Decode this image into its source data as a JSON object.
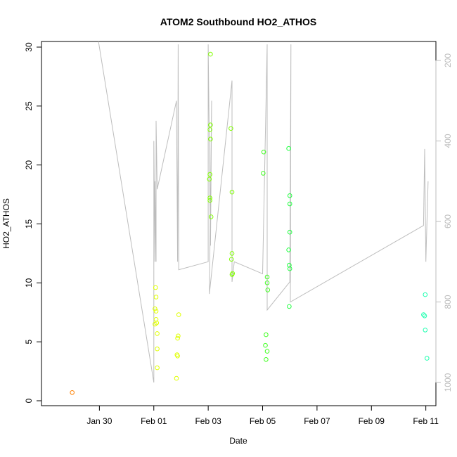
{
  "chart_data": {
    "type": "scatter",
    "title": "ATOM2 Southbound HO2_ATHOS",
    "xlabel": "Date",
    "ylabel": "HO2_ATHOS",
    "xlim": [
      "2016-01-28T00:00",
      "2016-02-11T12:00"
    ],
    "ylim": [
      0,
      30
    ],
    "y2lim": [
      1050,
      150
    ],
    "x_ticks": [
      {
        "label": "Jan 30",
        "value": "2016-01-30T00:00"
      },
      {
        "label": "Feb 01",
        "value": "2016-02-01T00:00"
      },
      {
        "label": "Feb 03",
        "value": "2016-02-03T00:00"
      },
      {
        "label": "Feb 05",
        "value": "2016-02-05T00:00"
      },
      {
        "label": "Feb 07",
        "value": "2016-02-07T00:00"
      },
      {
        "label": "Feb 09",
        "value": "2016-02-09T00:00"
      },
      {
        "label": "Feb 11",
        "value": "2016-02-11T00:00"
      }
    ],
    "y_ticks": [
      "0",
      "5",
      "10",
      "15",
      "20",
      "25",
      "30"
    ],
    "y2_ticks": [
      "200",
      "400",
      "600",
      "800",
      "1000"
    ],
    "grid": false,
    "series": [
      {
        "color": "#ff8000",
        "points": [
          [
            "2016-01-29T00:00",
            0.7
          ]
        ]
      },
      {
        "color": "#e0ff00",
        "points": [
          [
            "2016-02-01T01:00",
            7.8
          ],
          [
            "2016-02-01T01:00",
            6.5
          ],
          [
            "2016-02-01T01:30",
            9.6
          ],
          [
            "2016-02-01T02:00",
            8.8
          ],
          [
            "2016-02-01T02:00",
            7.6
          ],
          [
            "2016-02-01T02:00",
            6.9
          ],
          [
            "2016-02-01T02:30",
            6.6
          ],
          [
            "2016-02-01T03:00",
            5.7
          ],
          [
            "2016-02-01T03:00",
            4.4
          ],
          [
            "2016-02-01T03:00",
            2.8
          ],
          [
            "2016-02-01T20:00",
            1.9
          ],
          [
            "2016-02-01T20:30",
            3.9
          ],
          [
            "2016-02-01T21:00",
            3.8
          ],
          [
            "2016-02-01T21:00",
            5.3
          ],
          [
            "2016-02-01T21:30",
            5.5
          ],
          [
            "2016-02-01T22:00",
            7.3
          ]
        ]
      },
      {
        "color": "#80ff00",
        "points": [
          [
            "2016-02-03T02:00",
            29.4
          ],
          [
            "2016-02-03T02:00",
            23.4
          ],
          [
            "2016-02-03T01:30",
            23.0
          ],
          [
            "2016-02-03T02:00",
            22.2
          ],
          [
            "2016-02-03T01:30",
            19.2
          ],
          [
            "2016-02-03T01:00",
            18.8
          ],
          [
            "2016-02-03T01:30",
            17.2
          ],
          [
            "2016-02-03T01:30",
            17.0
          ],
          [
            "2016-02-03T02:30",
            15.6
          ],
          [
            "2016-02-03T20:00",
            23.1
          ],
          [
            "2016-02-03T21:00",
            17.7
          ],
          [
            "2016-02-03T21:00",
            12.5
          ],
          [
            "2016-02-03T20:30",
            12.0
          ],
          [
            "2016-02-03T21:00",
            10.7
          ],
          [
            "2016-02-03T21:30",
            10.8
          ]
        ]
      },
      {
        "color": "#40ff20",
        "points": [
          [
            "2016-02-05T01:00",
            21.1
          ],
          [
            "2016-02-05T00:30",
            19.3
          ],
          [
            "2016-02-05T04:00",
            10.5
          ],
          [
            "2016-02-05T04:00",
            10.0
          ],
          [
            "2016-02-05T04:30",
            9.4
          ],
          [
            "2016-02-05T03:00",
            5.6
          ],
          [
            "2016-02-05T02:30",
            4.7
          ],
          [
            "2016-02-05T04:00",
            4.2
          ],
          [
            "2016-02-05T03:00",
            3.5
          ]
        ]
      },
      {
        "color": "#20ff40",
        "points": [
          [
            "2016-02-05T23:00",
            21.4
          ],
          [
            "2016-02-06T00:00",
            17.4
          ],
          [
            "2016-02-06T00:00",
            16.7
          ],
          [
            "2016-02-06T00:00",
            14.3
          ],
          [
            "2016-02-05T23:00",
            12.8
          ],
          [
            "2016-02-05T23:30",
            11.5
          ],
          [
            "2016-02-06T00:00",
            11.2
          ],
          [
            "2016-02-05T23:30",
            8.0
          ]
        ]
      },
      {
        "color": "#20ffb0",
        "points": [
          [
            "2016-02-10T23:30",
            9.0
          ],
          [
            "2016-02-10T22:00",
            7.3
          ],
          [
            "2016-02-10T23:00",
            7.2
          ],
          [
            "2016-02-10T23:30",
            6.0
          ],
          [
            "2016-02-11T01:00",
            3.6
          ]
        ]
      }
    ],
    "pressure_line": {
      "color": "#bdbdbd",
      "axis": "right",
      "points": [
        [
          "2016-01-29T23:00",
          150
        ],
        [
          "2016-02-01T00:00",
          1000
        ],
        [
          "2016-02-01T00:00",
          400
        ],
        [
          "2016-02-01T01:00",
          700
        ],
        [
          "2016-02-01T01:00",
          500
        ],
        [
          "2016-02-01T02:00",
          700
        ],
        [
          "2016-02-01T02:00",
          350
        ],
        [
          "2016-02-01T03:00",
          520
        ],
        [
          "2016-02-01T20:00",
          300
        ],
        [
          "2016-02-01T21:00",
          700
        ],
        [
          "2016-02-01T21:30",
          160
        ],
        [
          "2016-02-01T22:00",
          720
        ],
        [
          "2016-02-03T00:00",
          700
        ],
        [
          "2016-02-03T00:00",
          160
        ],
        [
          "2016-02-03T02:00",
          660
        ],
        [
          "2016-02-03T03:00",
          300
        ],
        [
          "2016-02-03T01:00",
          780
        ],
        [
          "2016-02-03T21:00",
          250
        ],
        [
          "2016-02-03T21:00",
          750
        ],
        [
          "2016-02-03T23:00",
          700
        ],
        [
          "2016-02-05T00:00",
          730
        ],
        [
          "2016-02-05T04:00",
          160
        ],
        [
          "2016-02-05T04:00",
          820
        ],
        [
          "2016-02-06T00:00",
          750
        ],
        [
          "2016-02-06T01:00",
          160
        ],
        [
          "2016-02-06T00:30",
          800
        ],
        [
          "2016-02-10T22:00",
          610
        ],
        [
          "2016-02-10T23:00",
          420
        ],
        [
          "2016-02-11T00:00",
          700
        ],
        [
          "2016-02-11T02:00",
          500
        ]
      ]
    }
  }
}
